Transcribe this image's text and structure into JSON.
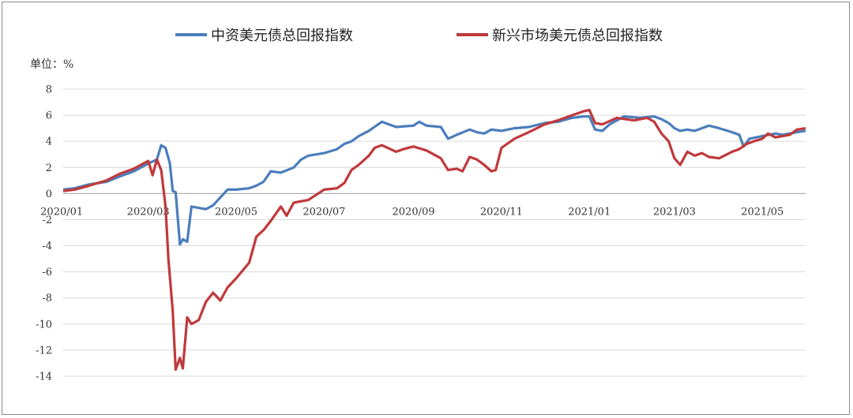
{
  "chart_data": {
    "type": "line",
    "unit_label": "单位：%",
    "grid": "horizontal",
    "legend_position": "top",
    "ylim": [
      -14,
      8
    ],
    "yticks": [
      8,
      6,
      4,
      2,
      0,
      -2,
      -4,
      -6,
      -8,
      -10,
      -12,
      -14
    ],
    "xticks": [
      "2020/01",
      "2020/03",
      "2020/05",
      "2020/07",
      "2020/09",
      "2020/11",
      "2021/01",
      "2021/03",
      "2021/05"
    ],
    "x_start": "2020-01-02",
    "x_end": "2021-05-31",
    "series": [
      {
        "name": "中资美元债总回报指数",
        "color": "#4a7ebb",
        "points": [
          [
            "2020-01-02",
            0.3
          ],
          [
            "2020-01-10",
            0.4
          ],
          [
            "2020-01-20",
            0.7
          ],
          [
            "2020-02-01",
            0.9
          ],
          [
            "2020-02-10",
            1.3
          ],
          [
            "2020-02-20",
            1.7
          ],
          [
            "2020-03-01",
            2.3
          ],
          [
            "2020-03-07",
            2.6
          ],
          [
            "2020-03-10",
            3.7
          ],
          [
            "2020-03-13",
            3.5
          ],
          [
            "2020-03-16",
            2.3
          ],
          [
            "2020-03-18",
            0.2
          ],
          [
            "2020-03-20",
            0.1
          ],
          [
            "2020-03-23",
            -3.9
          ],
          [
            "2020-03-25",
            -3.5
          ],
          [
            "2020-03-28",
            -3.7
          ],
          [
            "2020-03-31",
            -1.0
          ],
          [
            "2020-04-05",
            -1.1
          ],
          [
            "2020-04-10",
            -1.2
          ],
          [
            "2020-04-15",
            -0.9
          ],
          [
            "2020-04-20",
            -0.3
          ],
          [
            "2020-04-25",
            0.3
          ],
          [
            "2020-05-01",
            0.3
          ],
          [
            "2020-05-10",
            0.4
          ],
          [
            "2020-05-15",
            0.6
          ],
          [
            "2020-05-20",
            0.9
          ],
          [
            "2020-05-25",
            1.7
          ],
          [
            "2020-06-01",
            1.6
          ],
          [
            "2020-06-10",
            2.0
          ],
          [
            "2020-06-15",
            2.6
          ],
          [
            "2020-06-20",
            2.9
          ],
          [
            "2020-07-01",
            3.1
          ],
          [
            "2020-07-10",
            3.4
          ],
          [
            "2020-07-15",
            3.8
          ],
          [
            "2020-07-20",
            4.0
          ],
          [
            "2020-07-25",
            4.4
          ],
          [
            "2020-08-01",
            4.8
          ],
          [
            "2020-08-10",
            5.5
          ],
          [
            "2020-08-15",
            5.3
          ],
          [
            "2020-08-20",
            5.1
          ],
          [
            "2020-09-01",
            5.2
          ],
          [
            "2020-09-05",
            5.5
          ],
          [
            "2020-09-10",
            5.2
          ],
          [
            "2020-09-20",
            5.1
          ],
          [
            "2020-09-25",
            4.2
          ],
          [
            "2020-10-01",
            4.5
          ],
          [
            "2020-10-10",
            4.9
          ],
          [
            "2020-10-15",
            4.7
          ],
          [
            "2020-10-20",
            4.6
          ],
          [
            "2020-10-25",
            4.9
          ],
          [
            "2020-11-01",
            4.8
          ],
          [
            "2020-11-10",
            5.0
          ],
          [
            "2020-11-20",
            5.1
          ],
          [
            "2020-12-01",
            5.4
          ],
          [
            "2020-12-10",
            5.5
          ],
          [
            "2020-12-20",
            5.8
          ],
          [
            "2020-12-28",
            5.9
          ],
          [
            "2021-01-01",
            5.9
          ],
          [
            "2021-01-05",
            4.9
          ],
          [
            "2021-01-10",
            4.8
          ],
          [
            "2021-01-15",
            5.3
          ],
          [
            "2021-01-25",
            5.9
          ],
          [
            "2021-02-05",
            5.8
          ],
          [
            "2021-02-15",
            5.9
          ],
          [
            "2021-02-20",
            5.7
          ],
          [
            "2021-02-25",
            5.4
          ],
          [
            "2021-03-01",
            5.0
          ],
          [
            "2021-03-05",
            4.8
          ],
          [
            "2021-03-10",
            4.9
          ],
          [
            "2021-03-15",
            4.8
          ],
          [
            "2021-03-20",
            5.0
          ],
          [
            "2021-03-25",
            5.2
          ],
          [
            "2021-04-01",
            5.0
          ],
          [
            "2021-04-10",
            4.7
          ],
          [
            "2021-04-15",
            4.5
          ],
          [
            "2021-04-18",
            3.6
          ],
          [
            "2021-04-22",
            4.2
          ],
          [
            "2021-05-01",
            4.4
          ],
          [
            "2021-05-10",
            4.6
          ],
          [
            "2021-05-15",
            4.5
          ],
          [
            "2021-05-20",
            4.6
          ],
          [
            "2021-05-25",
            4.7
          ],
          [
            "2021-05-31",
            4.8
          ]
        ]
      },
      {
        "name": "新兴市场美元债总回报指数",
        "color": "#c0393b",
        "points": [
          [
            "2020-01-02",
            0.2
          ],
          [
            "2020-01-10",
            0.3
          ],
          [
            "2020-01-20",
            0.6
          ],
          [
            "2020-02-01",
            1.0
          ],
          [
            "2020-02-10",
            1.5
          ],
          [
            "2020-02-20",
            1.9
          ],
          [
            "2020-03-01",
            2.5
          ],
          [
            "2020-03-04",
            1.4
          ],
          [
            "2020-03-07",
            2.6
          ],
          [
            "2020-03-10",
            1.8
          ],
          [
            "2020-03-13",
            -1.0
          ],
          [
            "2020-03-15",
            -5.0
          ],
          [
            "2020-03-18",
            -9.0
          ],
          [
            "2020-03-20",
            -13.5
          ],
          [
            "2020-03-23",
            -12.6
          ],
          [
            "2020-03-25",
            -13.4
          ],
          [
            "2020-03-28",
            -9.5
          ],
          [
            "2020-03-31",
            -10.0
          ],
          [
            "2020-04-05",
            -9.7
          ],
          [
            "2020-04-10",
            -8.3
          ],
          [
            "2020-04-15",
            -7.6
          ],
          [
            "2020-04-20",
            -8.2
          ],
          [
            "2020-04-25",
            -7.2
          ],
          [
            "2020-05-01",
            -6.5
          ],
          [
            "2020-05-10",
            -5.3
          ],
          [
            "2020-05-15",
            -3.3
          ],
          [
            "2020-05-20",
            -2.8
          ],
          [
            "2020-05-25",
            -2.1
          ],
          [
            "2020-06-01",
            -1.0
          ],
          [
            "2020-06-05",
            -1.7
          ],
          [
            "2020-06-10",
            -0.7
          ],
          [
            "2020-06-20",
            -0.5
          ],
          [
            "2020-07-01",
            0.3
          ],
          [
            "2020-07-10",
            0.4
          ],
          [
            "2020-07-15",
            0.8
          ],
          [
            "2020-07-20",
            1.8
          ],
          [
            "2020-07-25",
            2.2
          ],
          [
            "2020-08-01",
            2.9
          ],
          [
            "2020-08-05",
            3.5
          ],
          [
            "2020-08-10",
            3.7
          ],
          [
            "2020-08-20",
            3.2
          ],
          [
            "2020-08-25",
            3.4
          ],
          [
            "2020-09-01",
            3.6
          ],
          [
            "2020-09-10",
            3.3
          ],
          [
            "2020-09-20",
            2.7
          ],
          [
            "2020-09-25",
            1.8
          ],
          [
            "2020-10-01",
            1.9
          ],
          [
            "2020-10-05",
            1.7
          ],
          [
            "2020-10-10",
            2.8
          ],
          [
            "2020-10-15",
            2.6
          ],
          [
            "2020-10-20",
            2.2
          ],
          [
            "2020-10-25",
            1.7
          ],
          [
            "2020-10-28",
            1.8
          ],
          [
            "2020-11-01",
            3.5
          ],
          [
            "2020-11-10",
            4.2
          ],
          [
            "2020-11-20",
            4.7
          ],
          [
            "2020-12-01",
            5.3
          ],
          [
            "2020-12-10",
            5.6
          ],
          [
            "2020-12-20",
            6.0
          ],
          [
            "2020-12-28",
            6.3
          ],
          [
            "2021-01-01",
            6.4
          ],
          [
            "2021-01-05",
            5.4
          ],
          [
            "2021-01-10",
            5.3
          ],
          [
            "2021-01-20",
            5.8
          ],
          [
            "2021-02-01",
            5.6
          ],
          [
            "2021-02-10",
            5.8
          ],
          [
            "2021-02-15",
            5.5
          ],
          [
            "2021-02-20",
            4.6
          ],
          [
            "2021-02-25",
            4.0
          ],
          [
            "2021-03-01",
            2.7
          ],
          [
            "2021-03-05",
            2.2
          ],
          [
            "2021-03-10",
            3.2
          ],
          [
            "2021-03-15",
            2.9
          ],
          [
            "2021-03-20",
            3.1
          ],
          [
            "2021-03-25",
            2.8
          ],
          [
            "2021-04-01",
            2.7
          ],
          [
            "2021-04-10",
            3.2
          ],
          [
            "2021-04-15",
            3.4
          ],
          [
            "2021-04-20",
            3.8
          ],
          [
            "2021-04-25",
            4.0
          ],
          [
            "2021-05-01",
            4.2
          ],
          [
            "2021-05-05",
            4.6
          ],
          [
            "2021-05-10",
            4.3
          ],
          [
            "2021-05-15",
            4.4
          ],
          [
            "2021-05-20",
            4.5
          ],
          [
            "2021-05-25",
            4.9
          ],
          [
            "2021-05-31",
            5.0
          ]
        ]
      }
    ]
  }
}
